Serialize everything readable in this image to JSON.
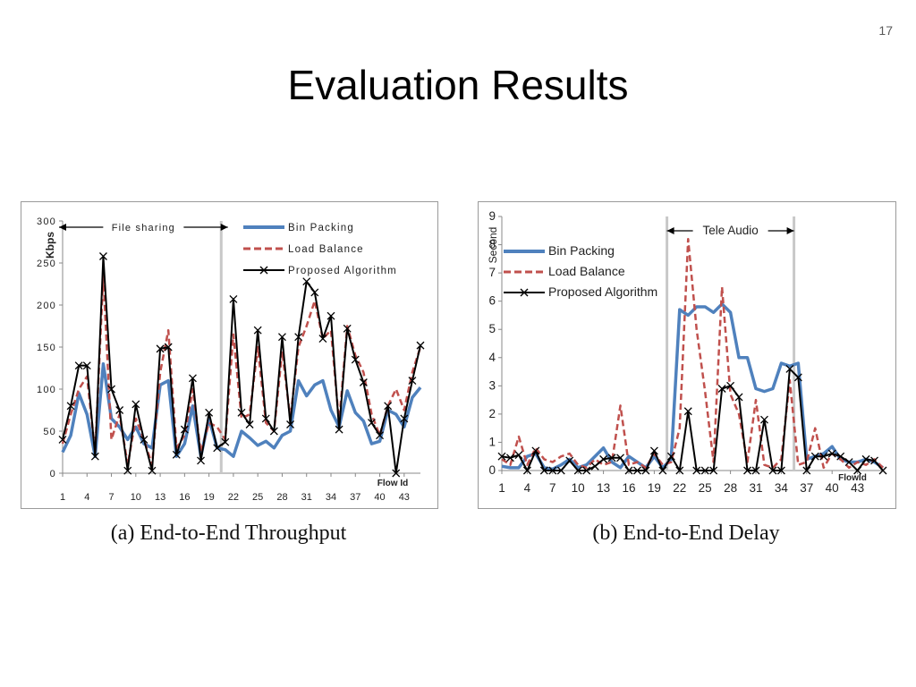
{
  "slide": {
    "page_number": "17",
    "title": "Evaluation Results"
  },
  "colors": {
    "bin_packing": "#4F81BD",
    "load_balance": "#C0504D",
    "proposed": "#000000",
    "divider": "#C8C8C8"
  },
  "chart_data": [
    {
      "type": "line",
      "caption": "(a) End-to-End Throughput",
      "ylabel": "Kbps",
      "xlabel": "Flow Id",
      "ylim": [
        0,
        300
      ],
      "yticks": [
        0,
        50,
        100,
        150,
        200,
        250,
        300
      ],
      "yticklabels": [
        "0",
        "50",
        "100",
        "150",
        "200",
        "250",
        "300"
      ],
      "x": [
        1,
        2,
        3,
        4,
        5,
        6,
        7,
        8,
        9,
        10,
        11,
        12,
        13,
        14,
        15,
        16,
        17,
        18,
        19,
        20,
        21,
        22,
        23,
        24,
        25,
        26,
        27,
        28,
        29,
        30,
        31,
        32,
        33,
        34,
        35,
        36,
        37,
        38,
        39,
        40,
        41,
        42,
        43,
        44,
        45
      ],
      "xticks": [
        1,
        4,
        7,
        10,
        13,
        16,
        19,
        22,
        25,
        28,
        31,
        34,
        37,
        40,
        43
      ],
      "xticklabels": [
        "1",
        "4",
        "7",
        "10",
        "13",
        "16",
        "19",
        "22",
        "25",
        "28",
        "31",
        "34",
        "37",
        "40",
        "43"
      ],
      "legend_position": "top-right",
      "annotation": {
        "label": "File sharing",
        "x_start": 1,
        "x_end": 20,
        "divider_x": 20.5
      },
      "series": [
        {
          "name": "Bin Packing",
          "style": "solid",
          "values": [
            25,
            45,
            95,
            70,
            20,
            130,
            65,
            55,
            40,
            55,
            35,
            30,
            105,
            110,
            20,
            35,
            80,
            20,
            65,
            30,
            28,
            20,
            50,
            42,
            33,
            38,
            30,
            45,
            50,
            110,
            92,
            105,
            110,
            75,
            55,
            98,
            72,
            62,
            35,
            38,
            75,
            70,
            55,
            90,
            102
          ]
        },
        {
          "name": "Load Balance",
          "style": "dashed",
          "values": [
            35,
            70,
            100,
            115,
            25,
            235,
            40,
            70,
            10,
            65,
            40,
            10,
            120,
            170,
            30,
            45,
            100,
            25,
            60,
            55,
            40,
            165,
            65,
            70,
            150,
            60,
            50,
            145,
            65,
            150,
            175,
            205,
            160,
            170,
            60,
            175,
            140,
            120,
            70,
            45,
            80,
            100,
            75,
            120,
            150
          ]
        },
        {
          "name": "Proposed Algorithm",
          "style": "cross",
          "values": [
            40,
            80,
            128,
            128,
            20,
            258,
            100,
            75,
            3,
            82,
            40,
            3,
            148,
            150,
            22,
            52,
            113,
            15,
            72,
            30,
            37,
            207,
            72,
            58,
            170,
            65,
            50,
            162,
            58,
            162,
            228,
            215,
            160,
            187,
            52,
            172,
            135,
            108,
            60,
            45,
            80,
            0,
            65,
            110,
            152
          ]
        }
      ]
    },
    {
      "type": "line",
      "caption": "(b) End-to-End Delay",
      "ylabel": "Second",
      "xlabel": "FlowId",
      "ylim": [
        0,
        9
      ],
      "yticks": [
        0,
        1,
        2,
        3,
        4,
        5,
        6,
        7,
        8,
        9
      ],
      "yticklabels": [
        "0",
        "1",
        "2",
        "3",
        "4",
        "5",
        "6",
        "7",
        "8",
        "9"
      ],
      "x": [
        1,
        2,
        3,
        4,
        5,
        6,
        7,
        8,
        9,
        10,
        11,
        12,
        13,
        14,
        15,
        16,
        17,
        18,
        19,
        20,
        21,
        22,
        23,
        24,
        25,
        26,
        27,
        28,
        29,
        30,
        31,
        32,
        33,
        34,
        35,
        36,
        37,
        38,
        39,
        40,
        41,
        42,
        43,
        44,
        45,
        46
      ],
      "xticks": [
        1,
        4,
        7,
        10,
        13,
        16,
        19,
        22,
        25,
        28,
        31,
        34,
        37,
        40,
        43
      ],
      "xticklabels": [
        "1",
        "4",
        "7",
        "10",
        "13",
        "16",
        "19",
        "22",
        "25",
        "28",
        "31",
        "34",
        "37",
        "40",
        "43"
      ],
      "legend_position": "top-left",
      "annotation": {
        "label": "Tele Audio",
        "x_start": 20.5,
        "x_end": 35.5,
        "divider_x1": 20.5,
        "divider_x2": 35.5
      },
      "series": [
        {
          "name": "Bin Packing",
          "style": "solid",
          "values": [
            0.15,
            0.1,
            0.1,
            0.5,
            0.6,
            0.1,
            0.05,
            0.2,
            0.4,
            0.1,
            0.2,
            0.5,
            0.8,
            0.3,
            0.1,
            0.5,
            0.3,
            0.1,
            0.5,
            0.1,
            0.4,
            5.7,
            5.5,
            5.8,
            5.8,
            5.6,
            5.9,
            5.6,
            4.0,
            4.0,
            2.9,
            2.8,
            2.9,
            3.8,
            3.7,
            3.8,
            0.4,
            0.5,
            0.6,
            0.85,
            0.4,
            0.3,
            0.3,
            0.4,
            0.3,
            0.1
          ]
        },
        {
          "name": "Load Balance",
          "style": "dashed",
          "values": [
            0.4,
            0.2,
            1.2,
            0.2,
            0.8,
            0.4,
            0.3,
            0.5,
            0.6,
            0.2,
            0.1,
            0.4,
            0.2,
            0.3,
            2.3,
            0.2,
            0.3,
            0.1,
            0.6,
            0.2,
            0.3,
            1.5,
            8.2,
            5.0,
            2.8,
            0.3,
            6.5,
            2.7,
            2.0,
            0.3,
            2.5,
            0.2,
            0.1,
            0.4,
            3.2,
            0.2,
            0.3,
            1.5,
            0.1,
            0.6,
            0.4,
            0.1,
            0.3,
            0.2,
            0.4,
            0.1
          ]
        },
        {
          "name": "Proposed Algorithm",
          "style": "cross",
          "values": [
            0.5,
            0.45,
            0.55,
            0.0,
            0.7,
            0.0,
            0.0,
            0.0,
            0.35,
            0.0,
            0.0,
            0.15,
            0.4,
            0.45,
            0.45,
            0.0,
            0.0,
            0.0,
            0.7,
            0.0,
            0.5,
            0.0,
            2.1,
            0.0,
            0.0,
            0.0,
            2.9,
            3.0,
            2.6,
            0.0,
            0.0,
            1.8,
            0.0,
            0.0,
            3.6,
            3.3,
            0.0,
            0.5,
            0.5,
            0.6,
            0.5,
            0.3,
            0.0,
            0.4,
            0.35,
            0.0
          ]
        }
      ]
    }
  ]
}
